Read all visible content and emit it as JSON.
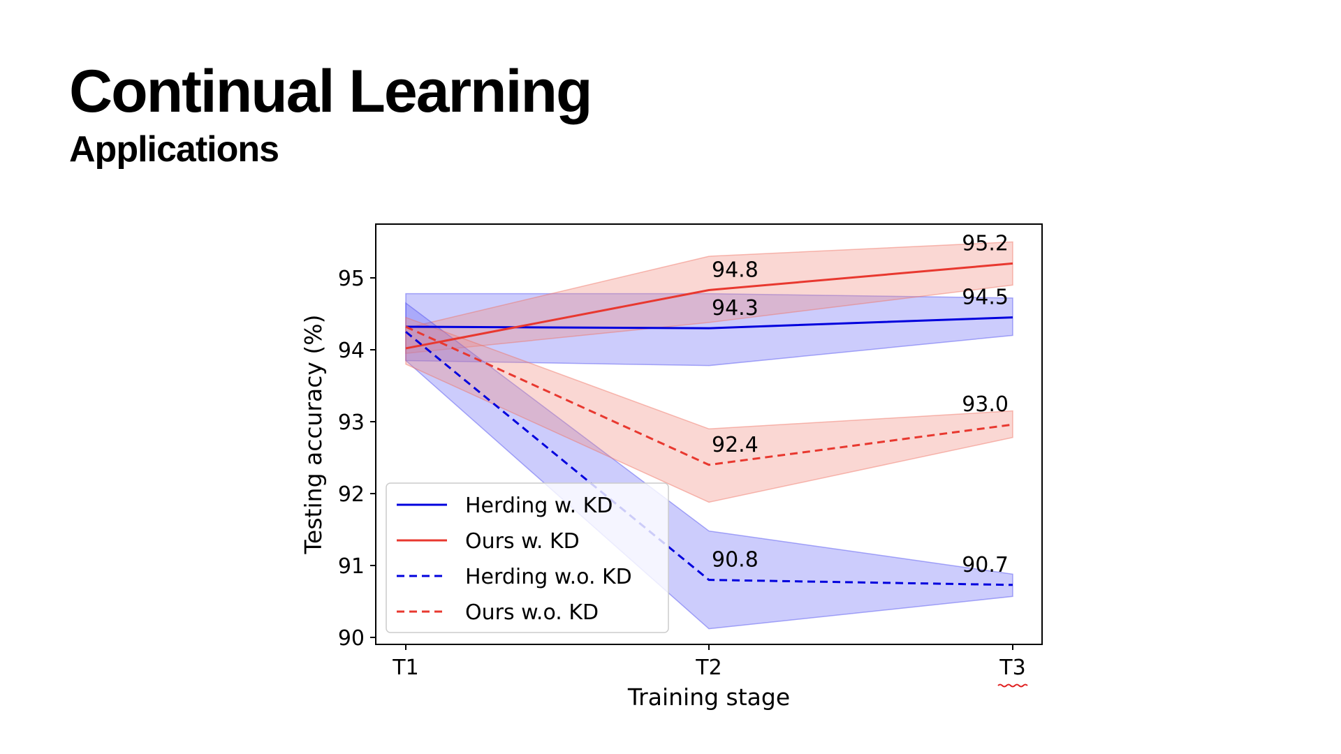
{
  "slide": {
    "title": "Continual Learning",
    "subtitle": "Applications"
  },
  "chart_data": {
    "type": "line",
    "xlabel": "Training stage",
    "ylabel": "Testing accuracy (%)",
    "categories": [
      "T1",
      "T2",
      "T3"
    ],
    "ylim": [
      89.9,
      95.8
    ],
    "yticks": [
      90,
      91,
      92,
      93,
      94,
      95
    ],
    "grid": false,
    "legend_position": "lower-left",
    "series": [
      {
        "name": "Herding w. KD",
        "color": "#0000dd",
        "linestyle": "solid",
        "values": [
          94.32,
          94.3,
          94.45
        ],
        "band_low": [
          93.85,
          93.78,
          94.2
        ],
        "band_high": [
          94.78,
          94.78,
          94.72
        ],
        "labels": [
          "",
          "94.3",
          "94.5"
        ]
      },
      {
        "name": "Ours w. KD",
        "color": "#e8382f",
        "linestyle": "solid",
        "values": [
          94.02,
          94.83,
          95.2
        ],
        "band_low": [
          93.95,
          94.38,
          94.9
        ],
        "band_high": [
          94.3,
          95.3,
          95.5
        ],
        "labels": [
          "",
          "94.8",
          "95.2"
        ]
      },
      {
        "name": "Herding w.o. KD",
        "color": "#0000dd",
        "linestyle": "dashed",
        "values": [
          94.25,
          90.8,
          90.73
        ],
        "band_low": [
          93.85,
          90.12,
          90.57
        ],
        "band_high": [
          94.65,
          91.48,
          90.88
        ],
        "labels": [
          "",
          "90.8",
          "90.7"
        ]
      },
      {
        "name": "Ours w.o. KD",
        "color": "#e8382f",
        "linestyle": "dashed",
        "values": [
          94.32,
          92.4,
          92.96
        ],
        "band_low": [
          93.8,
          91.88,
          92.78
        ],
        "band_high": [
          94.45,
          92.9,
          93.15
        ],
        "labels": [
          "",
          "92.4",
          "93.0"
        ]
      }
    ]
  }
}
